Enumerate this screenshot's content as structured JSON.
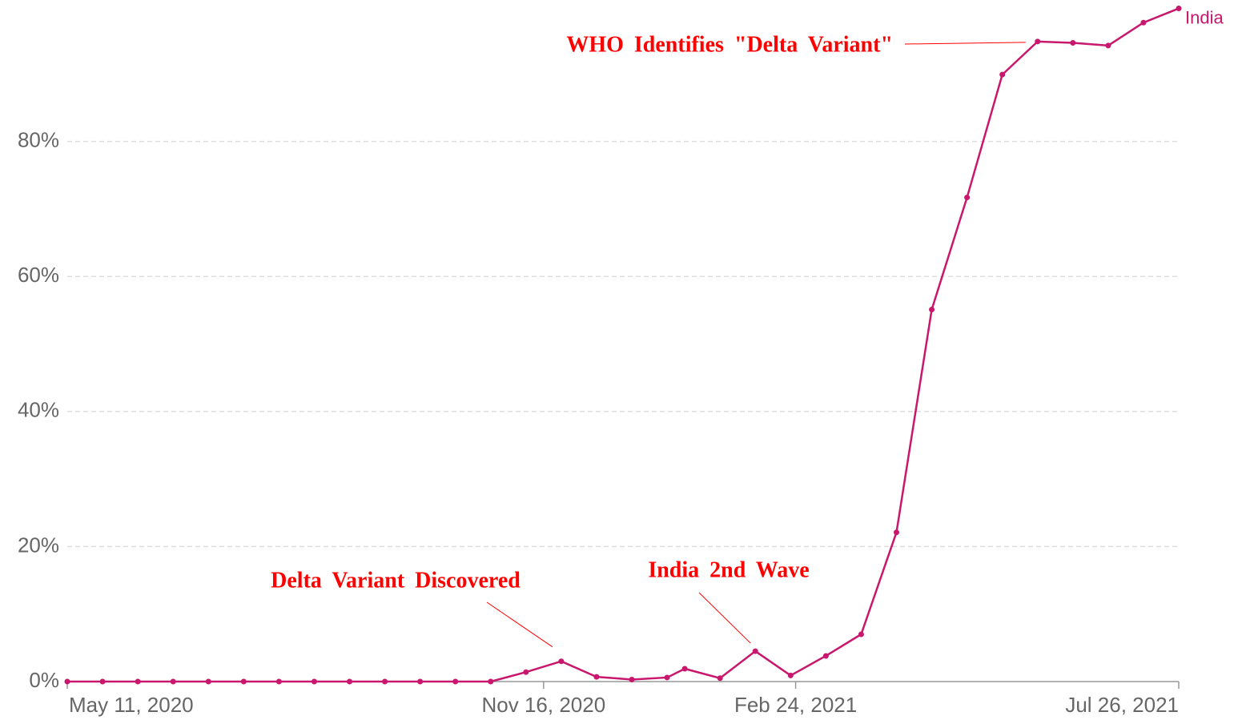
{
  "chart_data": {
    "type": "line",
    "x": [
      "2020-05-11",
      "2020-05-25",
      "2020-06-08",
      "2020-06-22",
      "2020-07-06",
      "2020-07-20",
      "2020-08-03",
      "2020-08-17",
      "2020-08-31",
      "2020-09-14",
      "2020-09-28",
      "2020-10-12",
      "2020-10-26",
      "2020-11-09",
      "2020-11-23",
      "2020-12-07",
      "2020-12-21",
      "2021-01-04",
      "2021-01-11",
      "2021-01-25",
      "2021-02-08",
      "2021-02-22",
      "2021-03-08",
      "2021-03-22",
      "2021-04-05",
      "2021-04-19",
      "2021-05-03",
      "2021-05-17",
      "2021-05-31",
      "2021-06-14",
      "2021-06-28",
      "2021-07-12",
      "2021-07-26"
    ],
    "series": [
      {
        "name": "India",
        "color": "#c8176c",
        "values": [
          0,
          0,
          0,
          0,
          0,
          0,
          0,
          0,
          0,
          0,
          0,
          0,
          0,
          1.4,
          3.0,
          0.7,
          0.3,
          0.6,
          1.9,
          0.5,
          4.5,
          0.9,
          3.8,
          7.0,
          22.1,
          55.1,
          71.7,
          89.9,
          94.8,
          94.6,
          94.2,
          97.6,
          99.7
        ]
      }
    ],
    "xlim": [
      "2020-05-11",
      "2021-07-26"
    ],
    "xticks": [
      {
        "value": "2020-05-11",
        "label": "May 11, 2020"
      },
      {
        "value": "2020-11-16",
        "label": "Nov 16, 2020"
      },
      {
        "value": "2021-02-24",
        "label": "Feb 24, 2021"
      },
      {
        "value": "2021-07-26",
        "label": "Jul 26, 2021"
      }
    ],
    "ylim": [
      0,
      100
    ],
    "yticks": [
      {
        "value": 0,
        "label": "0%"
      },
      {
        "value": 20,
        "label": "20%"
      },
      {
        "value": 40,
        "label": "40%"
      },
      {
        "value": 60,
        "label": "60%"
      },
      {
        "value": 80,
        "label": "80%"
      }
    ],
    "grid": true,
    "annotations": [
      {
        "text": "Delta Variant Discovered",
        "x": "2020-11-23"
      },
      {
        "text": "India 2nd Wave",
        "x": "2021-02-08"
      },
      {
        "text": "WHO Identifies \"Delta Variant\"",
        "x": "2021-05-31"
      }
    ]
  }
}
